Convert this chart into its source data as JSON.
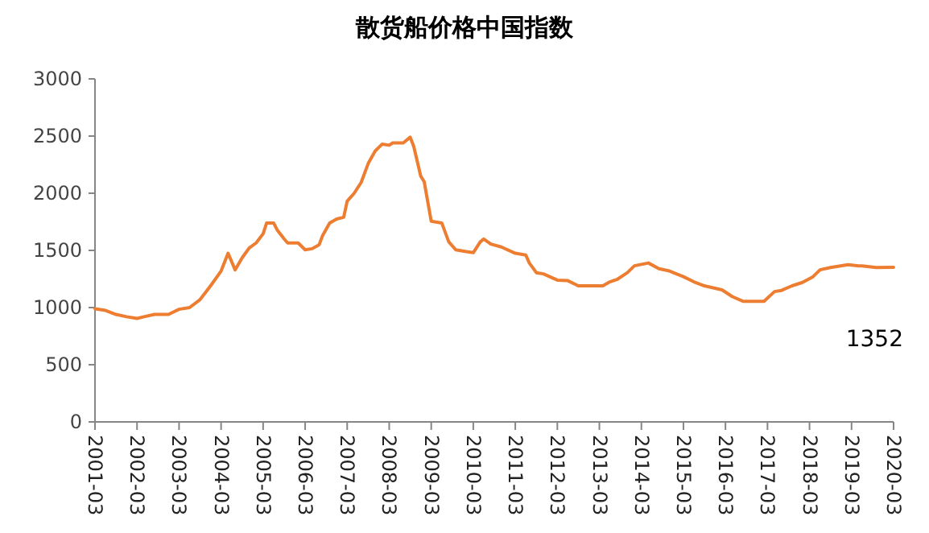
{
  "chart_data": {
    "type": "line",
    "title": "散货船价格中国指数",
    "x": [
      "2001-03",
      "2001-06",
      "2001-09",
      "2001-12",
      "2002-03",
      "2002-05",
      "2002-08",
      "2002-12",
      "2003-03",
      "2003-06",
      "2003-09",
      "2003-12",
      "2004-03",
      "2004-05",
      "2004-07",
      "2004-09",
      "2004-11",
      "2005-01",
      "2005-03",
      "2005-04",
      "2005-06",
      "2005-07",
      "2005-09",
      "2005-10",
      "2006-01",
      "2006-03",
      "2006-05",
      "2006-07",
      "2006-08",
      "2006-10",
      "2006-12",
      "2007-02",
      "2007-03",
      "2007-05",
      "2007-07",
      "2007-09",
      "2007-11",
      "2008-01",
      "2008-03",
      "2008-04",
      "2008-07",
      "2008-09",
      "2008-10",
      "2008-12",
      "2009-01",
      "2009-03",
      "2009-06",
      "2009-08",
      "2009-10",
      "2010-01",
      "2010-03",
      "2010-05",
      "2010-06",
      "2010-08",
      "2010-11",
      "2011-03",
      "2011-06",
      "2011-07",
      "2011-09",
      "2011-11",
      "2012-03",
      "2012-06",
      "2012-09",
      "2013-04",
      "2013-06",
      "2013-08",
      "2013-11",
      "2014-01",
      "2014-05",
      "2014-08",
      "2014-11",
      "2015-03",
      "2015-06",
      "2015-09",
      "2016-02",
      "2016-05",
      "2016-08",
      "2017-02",
      "2017-05",
      "2017-07",
      "2017-10",
      "2018-01",
      "2018-04",
      "2018-06",
      "2018-09",
      "2019-02",
      "2019-05",
      "2019-06",
      "2019-10",
      "2020-03"
    ],
    "series": [
      {
        "color": "#ed7d31",
        "values": [
          990,
          975,
          940,
          920,
          905,
          920,
          940,
          940,
          985,
          1000,
          1070,
          1190,
          1320,
          1475,
          1330,
          1435,
          1520,
          1565,
          1645,
          1740,
          1740,
          1680,
          1600,
          1565,
          1565,
          1505,
          1515,
          1550,
          1630,
          1740,
          1775,
          1790,
          1930,
          2000,
          2095,
          2260,
          2370,
          2430,
          2420,
          2440,
          2440,
          2490,
          2410,
          2150,
          2100,
          1755,
          1740,
          1575,
          1505,
          1490,
          1480,
          1575,
          1600,
          1555,
          1530,
          1475,
          1460,
          1390,
          1305,
          1295,
          1240,
          1235,
          1190,
          1190,
          1225,
          1245,
          1305,
          1365,
          1390,
          1340,
          1320,
          1270,
          1225,
          1190,
          1155,
          1095,
          1055,
          1055,
          1140,
          1150,
          1190,
          1220,
          1270,
          1330,
          1350,
          1375,
          1365,
          1365,
          1350,
          1352
        ]
      }
    ],
    "xlim": [
      "2001-03",
      "2020-03"
    ],
    "xticks": [
      "2001-03",
      "2002-03",
      "2003-03",
      "2004-03",
      "2005-03",
      "2006-03",
      "2007-03",
      "2008-03",
      "2009-03",
      "2010-03",
      "2011-03",
      "2012-03",
      "2013-03",
      "2014-03",
      "2015-03",
      "2016-03",
      "2017-03",
      "2018-03",
      "2019-03",
      "2020-03"
    ],
    "ylim": [
      0,
      3000
    ],
    "yticks": [
      0,
      500,
      1000,
      1500,
      2000,
      2500,
      3000
    ],
    "grid": false,
    "marker": "none",
    "line_style": "solid",
    "annotations": [
      "1352"
    ]
  }
}
